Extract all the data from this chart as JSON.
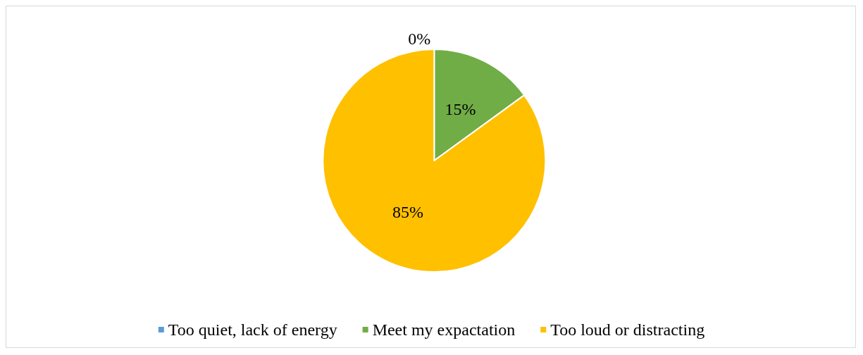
{
  "chart_data": {
    "type": "pie",
    "categories": [
      "Too quiet, lack of energy",
      "Meet my expactation",
      "Too loud or distracting"
    ],
    "values": [
      0,
      15,
      85
    ],
    "colors": [
      "#5b9bd5",
      "#70ad47",
      "#ffc000"
    ],
    "value_labels": [
      "0%",
      "15%",
      "85%"
    ],
    "legend": "bottom"
  }
}
